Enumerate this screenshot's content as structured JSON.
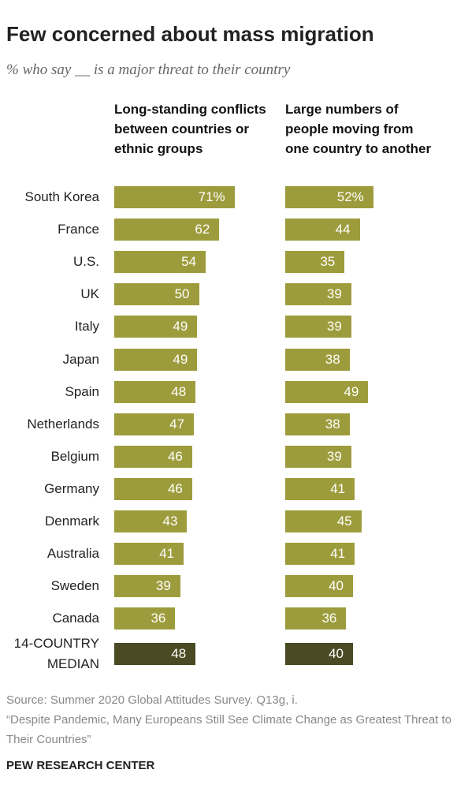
{
  "chart_data": {
    "type": "bar",
    "title": "Few concerned about mass migration",
    "subtitle": "% who say __ is a major threat to their country",
    "categories": [
      "South Korea",
      "France",
      "U.S.",
      "UK",
      "Italy",
      "Japan",
      "Spain",
      "Netherlands",
      "Belgium",
      "Germany",
      "Denmark",
      "Australia",
      "Sweden",
      "Canada",
      "14-COUNTRY MEDIAN"
    ],
    "series": [
      {
        "name": "Long-standing conflicts between countries or ethnic groups",
        "values": [
          71,
          62,
          54,
          50,
          49,
          49,
          48,
          47,
          46,
          46,
          43,
          41,
          39,
          36,
          48
        ],
        "value_labels": [
          "71%",
          "62",
          "54",
          "50",
          "49",
          "49",
          "48",
          "47",
          "46",
          "46",
          "43",
          "41",
          "39",
          "36",
          "48"
        ],
        "colors": [
          "#9d9c3c",
          "#9d9c3c",
          "#9d9c3c",
          "#9d9c3c",
          "#9d9c3c",
          "#9d9c3c",
          "#9d9c3c",
          "#9d9c3c",
          "#9d9c3c",
          "#9d9c3c",
          "#9d9c3c",
          "#9d9c3c",
          "#9d9c3c",
          "#9d9c3c",
          "#4a4a24"
        ]
      },
      {
        "name": "Large numbers of people moving from one country to another",
        "values": [
          52,
          44,
          35,
          39,
          39,
          38,
          49,
          38,
          39,
          41,
          45,
          41,
          40,
          36,
          40
        ],
        "value_labels": [
          "52%",
          "44",
          "35",
          "39",
          "39",
          "38",
          "49",
          "38",
          "39",
          "41",
          "45",
          "41",
          "40",
          "36",
          "40"
        ],
        "colors": [
          "#9d9c3c",
          "#9d9c3c",
          "#9d9c3c",
          "#9d9c3c",
          "#9d9c3c",
          "#9d9c3c",
          "#9d9c3c",
          "#9d9c3c",
          "#9d9c3c",
          "#9d9c3c",
          "#9d9c3c",
          "#9d9c3c",
          "#9d9c3c",
          "#9d9c3c",
          "#4a4a24"
        ]
      }
    ],
    "source": "Source: Summer 2020 Global Attitudes Survey. Q13g, i.",
    "note": "“Despite Pandemic, Many Europeans Still See Climate Change as Greatest Threat to Their Countries”",
    "footer": "PEW RESEARCH CENTER"
  }
}
